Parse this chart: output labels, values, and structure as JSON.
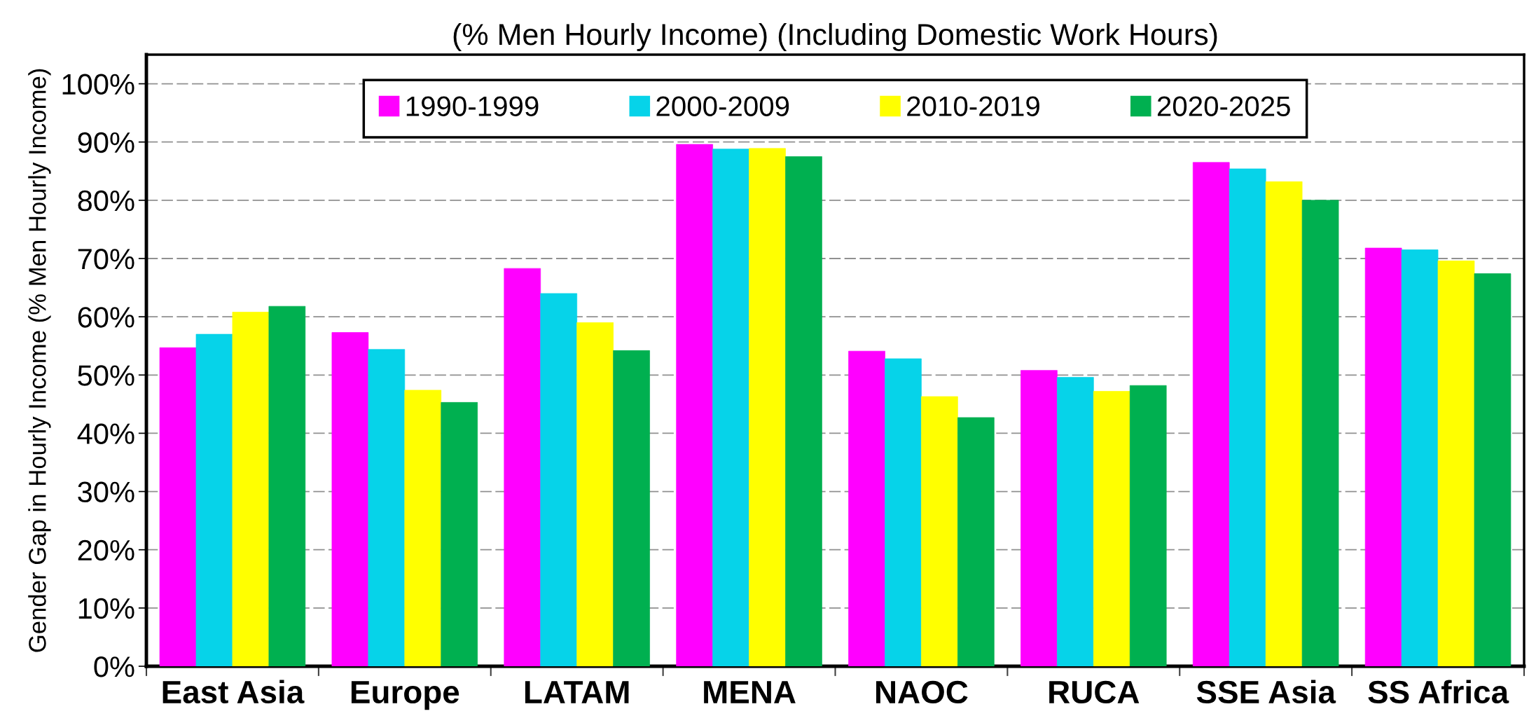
{
  "chart_data": {
    "type": "bar",
    "title": "(% Men Hourly Income) (Including Domestic Work Hours)",
    "ylabel": "Gender Gap in Hourly Income (% Men Hourly Income)",
    "categories": [
      "East Asia",
      "Europe",
      "LATAM",
      "MENA",
      "NAOC",
      "RUCA",
      "SSE Asia",
      "SS Africa"
    ],
    "series": [
      {
        "name": "1990-1999",
        "color": "#ff00ff",
        "values": [
          54.7,
          57.3,
          68.3,
          89.6,
          54.1,
          50.8,
          86.5,
          71.8
        ]
      },
      {
        "name": "2000-2009",
        "color": "#06d3e9",
        "values": [
          57.0,
          54.4,
          64.0,
          88.8,
          52.8,
          49.6,
          85.4,
          71.5
        ]
      },
      {
        "name": "2010-2019",
        "color": "#ffff00",
        "values": [
          60.8,
          47.4,
          59.0,
          88.9,
          46.3,
          47.2,
          83.2,
          69.6
        ]
      },
      {
        "name": "2020-2025",
        "color": "#00b050",
        "values": [
          61.8,
          45.3,
          54.2,
          87.5,
          42.7,
          48.2,
          80.0,
          67.4
        ]
      }
    ],
    "ylim": [
      0,
      105
    ],
    "yticks": [
      {
        "value": 0,
        "label": "0%"
      },
      {
        "value": 10,
        "label": "10%"
      },
      {
        "value": 20,
        "label": "20%"
      },
      {
        "value": 30,
        "label": "30%"
      },
      {
        "value": 40,
        "label": "40%"
      },
      {
        "value": 50,
        "label": "50%"
      },
      {
        "value": 60,
        "label": "60%"
      },
      {
        "value": 70,
        "label": "70%"
      },
      {
        "value": 80,
        "label": "80%"
      },
      {
        "value": 90,
        "label": "90%"
      },
      {
        "value": 100,
        "label": "100%"
      }
    ],
    "grid": "y",
    "legend": "top"
  }
}
